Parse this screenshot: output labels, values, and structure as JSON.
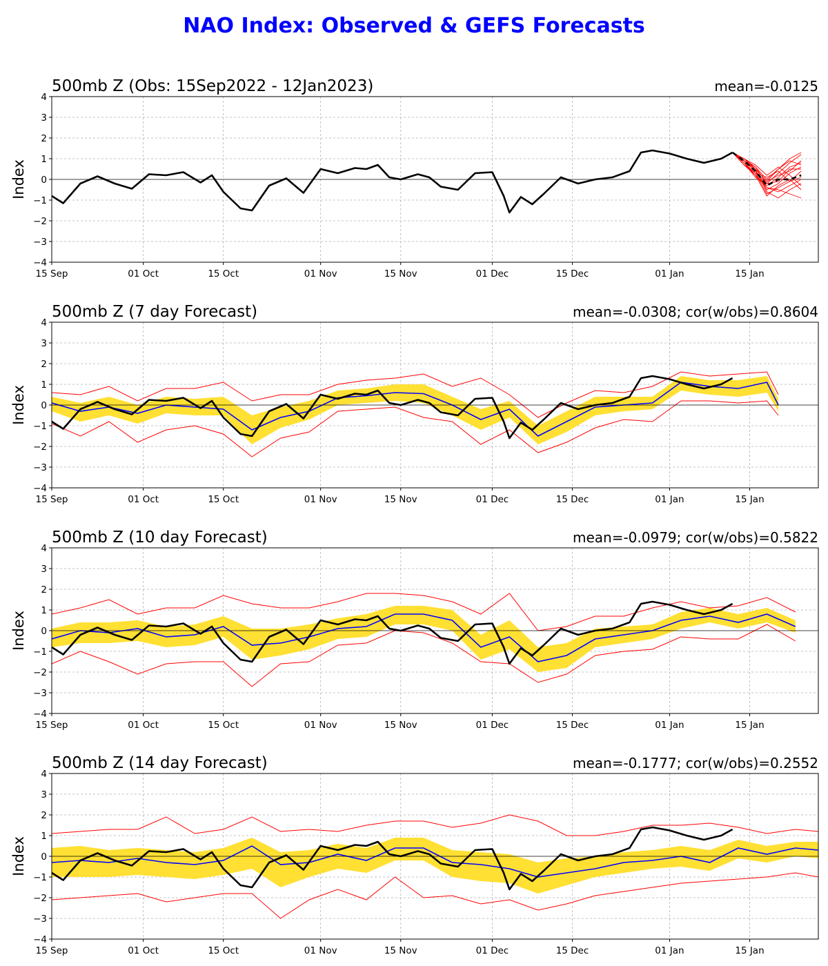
{
  "title": "NAO Index: Observed & GEFS Forecasts",
  "colors": {
    "title": "#0000ff",
    "observed": "#000000",
    "ensemble_mean": "#0000ff",
    "spread_band": "#ffe033",
    "extremes": "#ff0000",
    "members": "#ff0000"
  },
  "chart_data": [
    {
      "type": "line",
      "title": "500mb Z (Obs: 15Sep2022 - 12Jan2023)",
      "stat_label": "mean=-0.0125",
      "ylabel": "Index",
      "xlabel": "",
      "ylim": [
        -4,
        4
      ],
      "yticks": [
        -4,
        -3,
        -2,
        -1,
        0,
        1,
        2,
        3,
        4
      ],
      "xticks": [
        "15 Sep",
        "01 Oct",
        "15 Oct",
        "01 Nov",
        "15 Nov",
        "01 Dec",
        "15 Dec",
        "01 Jan",
        "15 Jan"
      ],
      "grid": true,
      "series": [],
      "members_note": "GEFS member forecasts from 12 Jan to 24 Jan (red thin lines), ensemble mean dashed black"
    },
    {
      "type": "line",
      "title": "500mb Z (7 day Forecast)",
      "stat_label": "mean=-0.0308; cor(w/obs)=0.8604",
      "ylabel": "Index",
      "xlabel": "",
      "ylim": [
        -4,
        4
      ],
      "yticks": [
        -4,
        -3,
        -2,
        -1,
        0,
        1,
        2,
        3,
        4
      ],
      "xticks": [
        "15 Sep",
        "01 Oct",
        "15 Oct",
        "01 Nov",
        "15 Nov",
        "01 Dec",
        "15 Dec",
        "01 Jan",
        "15 Jan"
      ],
      "grid": true,
      "series": []
    },
    {
      "type": "line",
      "title": "500mb Z (10 day Forecast)",
      "stat_label": "mean=-0.0979; cor(w/obs)=0.5822",
      "ylabel": "Index",
      "xlabel": "",
      "ylim": [
        -4,
        4
      ],
      "yticks": [
        -4,
        -3,
        -2,
        -1,
        0,
        1,
        2,
        3,
        4
      ],
      "xticks": [
        "15 Sep",
        "01 Oct",
        "15 Oct",
        "01 Nov",
        "15 Nov",
        "01 Dec",
        "15 Dec",
        "01 Jan",
        "15 Jan"
      ],
      "grid": true,
      "series": []
    },
    {
      "type": "line",
      "title": "500mb Z (14 day Forecast)",
      "stat_label": "mean=-0.1777; cor(w/obs)=0.2552",
      "ylabel": "Index",
      "xlabel": "",
      "ylim": [
        -4,
        4
      ],
      "yticks": [
        -4,
        -3,
        -2,
        -1,
        0,
        1,
        2,
        3,
        4
      ],
      "xticks": [
        "15 Sep",
        "01 Oct",
        "15 Oct",
        "01 Nov",
        "15 Nov",
        "01 Dec",
        "15 Dec",
        "01 Jan",
        "15 Jan"
      ],
      "grid": true,
      "series": []
    }
  ],
  "observed_nao": {
    "dates": [
      "2022-09-15",
      "2022-09-17",
      "2022-09-20",
      "2022-09-23",
      "2022-09-26",
      "2022-09-29",
      "2022-10-02",
      "2022-10-05",
      "2022-10-08",
      "2022-10-11",
      "2022-10-13",
      "2022-10-15",
      "2022-10-18",
      "2022-10-20",
      "2022-10-23",
      "2022-10-26",
      "2022-10-29",
      "2022-11-01",
      "2022-11-04",
      "2022-11-07",
      "2022-11-09",
      "2022-11-11",
      "2022-11-13",
      "2022-11-15",
      "2022-11-18",
      "2022-11-20",
      "2022-11-22",
      "2022-11-25",
      "2022-11-28",
      "2022-12-01",
      "2022-12-03",
      "2022-12-04",
      "2022-12-06",
      "2022-12-08",
      "2022-12-10",
      "2022-12-13",
      "2022-12-16",
      "2022-12-19",
      "2022-12-22",
      "2022-12-25",
      "2022-12-27",
      "2022-12-29",
      "2023-01-01",
      "2023-01-04",
      "2023-01-07",
      "2023-01-10",
      "2023-01-12"
    ],
    "values": [
      -0.8,
      -1.15,
      -0.2,
      0.15,
      -0.2,
      -0.45,
      0.25,
      0.2,
      0.35,
      -0.15,
      0.2,
      -0.6,
      -1.4,
      -1.5,
      -0.3,
      0.05,
      -0.65,
      0.5,
      0.3,
      0.55,
      0.5,
      0.7,
      0.1,
      0.0,
      0.25,
      0.1,
      -0.35,
      -0.5,
      0.3,
      0.35,
      -0.8,
      -1.6,
      -0.85,
      -1.2,
      -0.7,
      0.1,
      -0.2,
      0.0,
      0.1,
      0.4,
      1.3,
      1.4,
      1.25,
      1.0,
      0.8,
      1.0,
      1.3
    ]
  },
  "forecast_7day": {
    "dates": [
      "2022-09-15",
      "2022-09-20",
      "2022-09-25",
      "2022-09-30",
      "2022-10-05",
      "2022-10-10",
      "2022-10-15",
      "2022-10-20",
      "2022-10-25",
      "2022-10-30",
      "2022-11-04",
      "2022-11-09",
      "2022-11-14",
      "2022-11-19",
      "2022-11-24",
      "2022-11-29",
      "2022-12-04",
      "2022-12-09",
      "2022-12-14",
      "2022-12-19",
      "2022-12-24",
      "2022-12-29",
      "2023-01-03",
      "2023-01-08",
      "2023-01-13",
      "2023-01-18",
      "2023-01-20"
    ],
    "mean": [
      0.1,
      -0.3,
      -0.1,
      -0.4,
      0.0,
      -0.1,
      -0.2,
      -1.2,
      -0.6,
      -0.3,
      0.35,
      0.45,
      0.6,
      0.55,
      0.0,
      -0.7,
      -0.2,
      -1.5,
      -0.8,
      -0.1,
      0.0,
      0.1,
      1.1,
      0.9,
      0.8,
      1.1,
      0.0
    ],
    "band_low": [
      -0.3,
      -0.8,
      -0.5,
      -0.9,
      -0.4,
      -0.5,
      -0.5,
      -1.9,
      -1.1,
      -0.7,
      0.0,
      0.1,
      0.2,
      0.1,
      -0.5,
      -1.2,
      -0.6,
      -1.9,
      -1.3,
      -0.5,
      -0.3,
      -0.2,
      0.7,
      0.5,
      0.4,
      0.6,
      -0.3
    ],
    "band_high": [
      0.4,
      0.1,
      0.4,
      0.0,
      0.4,
      0.3,
      0.4,
      -0.5,
      -0.1,
      0.2,
      0.7,
      0.8,
      1.0,
      1.0,
      0.4,
      -0.2,
      0.2,
      -1.0,
      -0.3,
      0.4,
      0.4,
      0.4,
      1.4,
      1.2,
      1.2,
      1.4,
      0.3
    ],
    "min": [
      -0.9,
      -1.5,
      -0.8,
      -1.8,
      -1.2,
      -1.0,
      -1.4,
      -2.5,
      -1.6,
      -1.3,
      -0.3,
      -0.2,
      -0.1,
      -0.6,
      -0.8,
      -1.9,
      -1.2,
      -2.3,
      -1.8,
      -1.1,
      -0.7,
      -0.8,
      0.2,
      0.2,
      0.1,
      0.2,
      -0.5
    ],
    "max": [
      0.6,
      0.5,
      0.9,
      0.2,
      0.8,
      0.8,
      1.1,
      0.2,
      0.5,
      0.5,
      1.0,
      1.2,
      1.3,
      1.5,
      0.9,
      1.3,
      0.5,
      -0.6,
      0.1,
      0.7,
      0.6,
      0.9,
      1.6,
      1.4,
      1.5,
      1.6,
      0.5
    ]
  },
  "forecast_10day": {
    "dates": [
      "2022-09-15",
      "2022-09-20",
      "2022-09-25",
      "2022-09-30",
      "2022-10-05",
      "2022-10-10",
      "2022-10-15",
      "2022-10-20",
      "2022-10-25",
      "2022-10-30",
      "2022-11-04",
      "2022-11-09",
      "2022-11-14",
      "2022-11-19",
      "2022-11-24",
      "2022-11-29",
      "2022-12-04",
      "2022-12-09",
      "2022-12-14",
      "2022-12-19",
      "2022-12-24",
      "2022-12-29",
      "2023-01-03",
      "2023-01-08",
      "2023-01-13",
      "2023-01-18",
      "2023-01-23"
    ],
    "mean": [
      -0.4,
      0.0,
      -0.1,
      0.1,
      -0.3,
      -0.2,
      0.2,
      -0.7,
      -0.6,
      -0.3,
      0.1,
      0.2,
      0.8,
      0.8,
      0.5,
      -0.8,
      -0.3,
      -1.5,
      -1.2,
      -0.4,
      -0.2,
      0.0,
      0.5,
      0.7,
      0.4,
      0.8,
      0.2
    ],
    "band_low": [
      -0.8,
      -0.6,
      -0.6,
      -0.5,
      -0.8,
      -0.7,
      -0.3,
      -1.4,
      -1.2,
      -0.9,
      -0.4,
      -0.3,
      0.3,
      0.3,
      0.0,
      -1.4,
      -0.9,
      -2.0,
      -1.8,
      -0.8,
      -0.6,
      -0.4,
      0.1,
      0.4,
      0.1,
      0.4,
      -0.1
    ],
    "band_high": [
      0.1,
      0.4,
      0.4,
      0.5,
      0.2,
      0.3,
      0.7,
      0.1,
      0.1,
      0.3,
      0.6,
      0.8,
      1.2,
      1.2,
      1.0,
      -0.2,
      0.5,
      -0.8,
      -0.6,
      0.1,
      0.2,
      0.3,
      0.9,
      1.1,
      0.8,
      1.1,
      0.5
    ],
    "min": [
      -1.6,
      -1.0,
      -1.5,
      -2.1,
      -1.6,
      -1.5,
      -1.5,
      -2.7,
      -1.6,
      -1.5,
      -0.7,
      -0.6,
      0.0,
      -0.1,
      -0.6,
      -1.5,
      -1.6,
      -2.5,
      -2.1,
      -1.2,
      -1.0,
      -0.9,
      -0.3,
      -0.4,
      -0.4,
      0.3,
      -0.5
    ],
    "max": [
      0.8,
      1.1,
      1.5,
      0.8,
      1.1,
      1.1,
      1.7,
      1.3,
      1.1,
      1.1,
      1.4,
      1.8,
      1.8,
      1.7,
      1.4,
      0.8,
      1.8,
      0.0,
      0.2,
      0.7,
      0.7,
      1.1,
      1.4,
      1.1,
      1.2,
      1.6,
      0.9
    ]
  },
  "forecast_14day": {
    "dates": [
      "2022-09-15",
      "2022-09-20",
      "2022-09-25",
      "2022-09-30",
      "2022-10-05",
      "2022-10-10",
      "2022-10-15",
      "2022-10-20",
      "2022-10-25",
      "2022-10-30",
      "2022-11-04",
      "2022-11-09",
      "2022-11-14",
      "2022-11-19",
      "2022-11-24",
      "2022-11-29",
      "2022-12-04",
      "2022-12-09",
      "2022-12-14",
      "2022-12-19",
      "2022-12-24",
      "2022-12-29",
      "2023-01-03",
      "2023-01-08",
      "2023-01-13",
      "2023-01-18",
      "2023-01-23",
      "2023-01-27"
    ],
    "mean": [
      -0.3,
      -0.2,
      -0.3,
      -0.1,
      -0.3,
      -0.4,
      -0.2,
      0.5,
      -0.4,
      -0.3,
      0.1,
      -0.2,
      0.4,
      0.4,
      -0.3,
      -0.4,
      -0.6,
      -1.0,
      -0.8,
      -0.6,
      -0.3,
      -0.2,
      0.0,
      -0.3,
      0.4,
      0.1,
      0.4,
      0.3
    ],
    "band_low": [
      -1.0,
      -1.0,
      -1.0,
      -0.9,
      -1.0,
      -1.1,
      -0.9,
      -0.6,
      -1.5,
      -1.0,
      -0.6,
      -0.8,
      -0.2,
      -0.2,
      -1.0,
      -1.2,
      -1.3,
      -1.8,
      -1.4,
      -1.0,
      -0.8,
      -0.6,
      -0.5,
      -0.7,
      -0.1,
      -0.3,
      0.0,
      -0.1
    ],
    "band_high": [
      0.4,
      0.5,
      0.3,
      0.4,
      0.3,
      0.2,
      0.4,
      0.9,
      0.2,
      0.3,
      0.6,
      0.4,
      0.9,
      0.9,
      0.3,
      0.2,
      0.1,
      -0.3,
      -0.1,
      0.0,
      0.2,
      0.3,
      0.5,
      0.3,
      0.8,
      0.5,
      0.7,
      0.7
    ],
    "min": [
      -2.1,
      -2.0,
      -1.9,
      -1.8,
      -2.2,
      -2.0,
      -1.8,
      -1.8,
      -3.0,
      -2.1,
      -1.6,
      -2.1,
      -1.0,
      -2.0,
      -1.9,
      -2.3,
      -2.1,
      -2.6,
      -2.3,
      -1.9,
      -1.7,
      -1.5,
      -1.3,
      -1.2,
      -1.1,
      -1.0,
      -0.8,
      -1.0
    ],
    "max": [
      1.1,
      1.2,
      1.3,
      1.3,
      1.9,
      1.1,
      1.3,
      1.9,
      1.2,
      1.3,
      1.2,
      1.5,
      1.7,
      1.7,
      1.4,
      1.6,
      2.0,
      1.7,
      1.0,
      1.0,
      1.2,
      1.5,
      1.5,
      1.6,
      1.4,
      1.1,
      1.3,
      1.2
    ]
  },
  "member_forecasts": {
    "dates": [
      "2023-01-12",
      "2023-01-14",
      "2023-01-16",
      "2023-01-18",
      "2023-01-20",
      "2023-01-22",
      "2023-01-24"
    ],
    "ensemble_mean": [
      1.3,
      0.9,
      0.4,
      -0.3,
      0.0,
      0.0,
      0.2
    ],
    "members": [
      [
        1.3,
        0.9,
        0.5,
        -0.6,
        -0.9,
        -0.5,
        -0.2
      ],
      [
        1.3,
        0.8,
        0.2,
        -0.4,
        -0.5,
        -0.7,
        -0.9
      ],
      [
        1.3,
        0.9,
        0.4,
        -0.2,
        0.3,
        0.8,
        1.2
      ],
      [
        1.3,
        1.0,
        0.6,
        0.0,
        0.5,
        1.0,
        1.3
      ],
      [
        1.3,
        0.7,
        0.3,
        -0.5,
        -0.2,
        0.3,
        0.6
      ],
      [
        1.3,
        0.9,
        0.5,
        -0.1,
        0.2,
        0.4,
        0.9
      ],
      [
        1.3,
        0.8,
        0.3,
        -0.7,
        -0.4,
        -0.1,
        0.1
      ],
      [
        1.3,
        1.0,
        0.7,
        0.2,
        0.6,
        0.2,
        -0.3
      ],
      [
        1.3,
        0.8,
        0.1,
        -0.3,
        0.1,
        0.6,
        0.8
      ],
      [
        1.3,
        0.9,
        0.4,
        -0.4,
        -0.6,
        -0.3,
        0.0
      ],
      [
        1.3,
        0.8,
        0.3,
        0.1,
        0.4,
        -0.1,
        0.4
      ],
      [
        1.3,
        0.9,
        0.6,
        -0.2,
        -0.1,
        0.5,
        0.5
      ],
      [
        1.3,
        0.7,
        0.2,
        -0.8,
        -0.3,
        0.0,
        -0.5
      ],
      [
        1.3,
        1.0,
        0.5,
        -0.1,
        0.5,
        0.9,
        0.7
      ]
    ]
  }
}
